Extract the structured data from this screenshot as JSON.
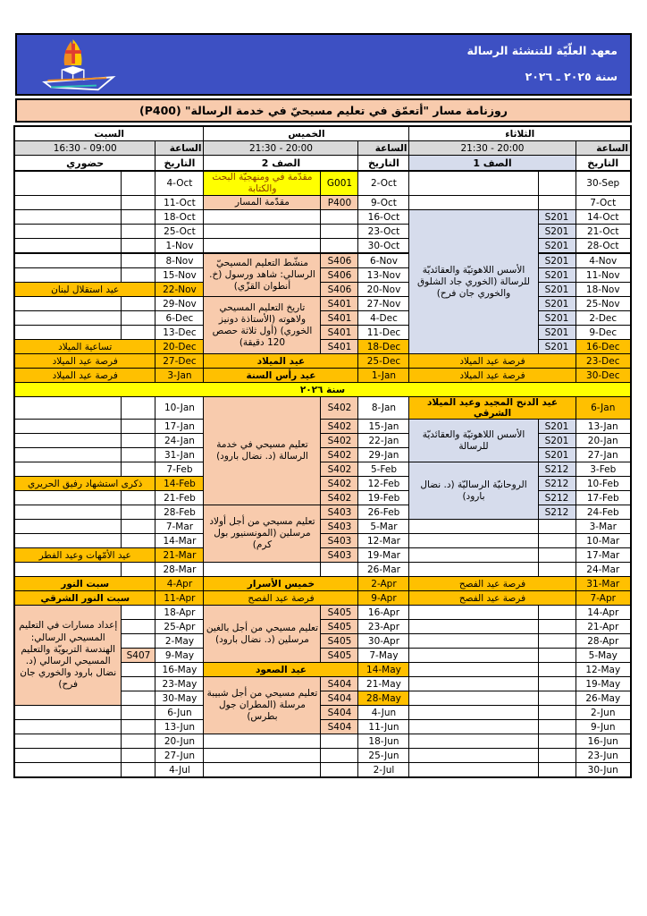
{
  "header": {
    "institute_name": "معهد العلّيّة للتنشئة الرسالة",
    "year_range": "سنة ٢٠٢٥ ـ ٢٠٢٦",
    "logo_icon": "boat-sail-cross-logo"
  },
  "title_bar": {
    "text": "روزنامة مسار \"أتعمّق في تعليم مسيحيّ في خدمة الرسالة\" (P400)"
  },
  "colors": {
    "header_blue": "#3d50c3",
    "band_salmon": "#f8cbad",
    "holiday_orange": "#ffc000",
    "course_blue": "#d6dcec",
    "year_yellow": "#ffff00",
    "time_gray": "#d9d9d9"
  },
  "table": {
    "time_label": "الساعة",
    "date_label": "التاريخ",
    "year_divider": "سنة ٢٠٢٦",
    "year_divider_after_row": 13,
    "groups": [
      {
        "key": "tue",
        "day": "الثلاثاء",
        "time": "21:30 - 20:00",
        "class_header": "الصف 1",
        "class_header_bg": "blue"
      },
      {
        "key": "thu",
        "day": "الخميس",
        "time": "21:30 - 20:00",
        "class_header": "الصف 2",
        "class_header_bg": ""
      },
      {
        "key": "sat",
        "day": "السبت",
        "time": "16:30 - 09:00",
        "class_header": "حضوري",
        "class_header_bg": ""
      }
    ],
    "rows": [
      {
        "tue": {
          "date": "30-Sep",
          "code": "",
          "desc": null
        },
        "thu": {
          "date": "2-Oct",
          "code": "G001",
          "cbg": "yellow",
          "desc": {
            "type": "block",
            "span": 1,
            "text": "مقدّمة في ومنهجيّة البحث والكتابة",
            "bg": "yellow",
            "fg": "brown",
            "align": "r"
          }
        },
        "sat": {
          "date": "4-Oct",
          "code": "",
          "desc": null
        }
      },
      {
        "tue": {
          "date": "7-Oct",
          "code": "",
          "desc": null
        },
        "thu": {
          "date": "9-Oct",
          "code": "P400",
          "cbg": "salmon",
          "desc": {
            "type": "block",
            "span": 1,
            "text": "مقدّمة المسار",
            "bg": "salmon",
            "align": "r"
          }
        },
        "sat": {
          "date": "11-Oct",
          "code": "",
          "desc": null
        }
      },
      {
        "tue": {
          "date": "14-Oct",
          "code": "S201",
          "cbg": "blue",
          "desc": {
            "type": "block",
            "span": 10,
            "text": "الأسس اللاهوتيّة والعقائديّة للرسالة (الخوري جاد الشلوق والخوري جان فرح)",
            "bg": "blue"
          }
        },
        "thu": {
          "date": "16-Oct",
          "code": "",
          "desc": null
        },
        "sat": {
          "date": "18-Oct",
          "code": "",
          "desc": null
        }
      },
      {
        "tue": {
          "date": "21-Oct",
          "code": "S201",
          "cbg": "blue",
          "desc": "skip"
        },
        "thu": {
          "date": "23-Oct",
          "code": "",
          "desc": null
        },
        "sat": {
          "date": "25-Oct",
          "code": "",
          "desc": null
        }
      },
      {
        "tue": {
          "date": "28-Oct",
          "code": "S201",
          "cbg": "blue",
          "desc": "skip"
        },
        "thu": {
          "date": "30-Oct",
          "code": "",
          "desc": null
        },
        "sat": {
          "date": "1-Nov",
          "code": "",
          "desc": null
        }
      },
      {
        "tue": {
          "date": "4-Nov",
          "code": "S201",
          "cbg": "blue",
          "desc": "skip"
        },
        "thu": {
          "date": "6-Nov",
          "code": "S406",
          "cbg": "salmon",
          "desc": {
            "type": "block",
            "span": 3,
            "text": "منشّط التعليم المسيحيّ الرسالي: شاهد ورسول (خ. أنطوان القزّي)",
            "bg": "salmon"
          }
        },
        "sat": {
          "date": "8-Nov",
          "code": "",
          "desc": null
        }
      },
      {
        "tue": {
          "date": "11-Nov",
          "code": "S201",
          "cbg": "blue",
          "desc": "skip"
        },
        "thu": {
          "date": "13-Nov",
          "code": "S406",
          "cbg": "salmon",
          "desc": "skip"
        },
        "sat": {
          "date": "15-Nov",
          "code": "",
          "desc": null
        }
      },
      {
        "tue": {
          "date": "18-Nov",
          "code": "S201",
          "cbg": "blue",
          "desc": "skip"
        },
        "thu": {
          "date": "20-Nov",
          "code": "S406",
          "cbg": "salmon",
          "desc": "skip"
        },
        "sat": {
          "date": "22-Nov",
          "hol": 1,
          "desc": {
            "type": "holiday",
            "text": "عيد استقلال لبنان",
            "align": "r"
          }
        }
      },
      {
        "tue": {
          "date": "25-Nov",
          "code": "S201",
          "cbg": "blue",
          "desc": "skip"
        },
        "thu": {
          "date": "27-Nov",
          "code": "S401",
          "cbg": "salmon",
          "desc": {
            "type": "block",
            "span": 4,
            "text": "تاريخ التعليم المسيحي ولاهوته (الأستاذة دونيز الخوري) (أول ثلاثة حصص 120 دقيقة)",
            "bg": "salmon"
          }
        },
        "sat": {
          "date": "29-Nov",
          "code": "",
          "desc": null
        }
      },
      {
        "tue": {
          "date": "2-Dec",
          "code": "S201",
          "cbg": "blue",
          "desc": "skip"
        },
        "thu": {
          "date": "4-Dec",
          "code": "S401",
          "cbg": "salmon",
          "desc": "skip"
        },
        "sat": {
          "date": "6-Dec",
          "code": "",
          "desc": null
        }
      },
      {
        "tue": {
          "date": "9-Dec",
          "code": "S201",
          "cbg": "blue",
          "desc": "skip"
        },
        "thu": {
          "date": "11-Dec",
          "code": "S401",
          "cbg": "salmon",
          "desc": "skip"
        },
        "sat": {
          "date": "13-Dec",
          "code": "",
          "desc": null
        }
      },
      {
        "tue": {
          "date": "16-Dec",
          "hol": 1,
          "code": "S201",
          "cbg": "blue",
          "desc": "skip"
        },
        "thu": {
          "date": "18-Dec",
          "hol": 1,
          "code": "S401",
          "cbg": "salmon",
          "desc": "skip"
        },
        "sat": {
          "date": "20-Dec",
          "hol": 1,
          "desc": {
            "type": "holiday",
            "text": "تساعية الميلاد",
            "align": "r"
          }
        }
      },
      {
        "tue": {
          "date": "23-Dec",
          "hol": 1,
          "desc": {
            "type": "holiday",
            "text": "فرصة عيد الميلاد"
          }
        },
        "thu": {
          "date": "25-Dec",
          "hol": 1,
          "desc": {
            "type": "holiday",
            "text": "عيد الميلاد",
            "bold": 1
          }
        },
        "sat": {
          "date": "27-Dec",
          "hol": 1,
          "desc": {
            "type": "holiday",
            "text": "فرصة عيد الميلاد",
            "align": "r"
          }
        }
      },
      {
        "tue": {
          "date": "30-Dec",
          "hol": 1,
          "desc": {
            "type": "holiday",
            "text": "فرصة عيد الميلاد"
          }
        },
        "thu": {
          "date": "1-Jan",
          "hol": 1,
          "desc": {
            "type": "holiday",
            "text": "عيد رأس السنة",
            "bold": 1
          }
        },
        "sat": {
          "date": "3-Jan",
          "hol": 1,
          "desc": {
            "type": "holiday",
            "text": "فرصة عيد الميلاد",
            "align": "r"
          }
        }
      },
      {
        "tue": {
          "date": "6-Jan",
          "hol": 1,
          "desc": {
            "type": "holiday",
            "text": "عيد الدنح المجيد وعيد الميلاد الشرقي",
            "bold": 1,
            "align": "r"
          }
        },
        "thu": {
          "date": "8-Jan",
          "code": "S402",
          "cbg": "salmon",
          "desc": {
            "type": "block",
            "span": 7,
            "text": "تعليم مسيحي في خدمة الرسالة (د. نضال بارود)",
            "bg": "salmon"
          }
        },
        "sat": {
          "date": "10-Jan",
          "code": "",
          "desc": null
        }
      },
      {
        "tue": {
          "date": "13-Jan",
          "code": "S201",
          "cbg": "blue",
          "desc": {
            "type": "block",
            "span": 3,
            "text": "الأسس اللاهوتيّة والعقائديّة للرسالة",
            "bg": "blue"
          }
        },
        "thu": {
          "date": "15-Jan",
          "code": "S402",
          "cbg": "salmon",
          "desc": "skip"
        },
        "sat": {
          "date": "17-Jan",
          "code": "",
          "desc": null
        }
      },
      {
        "tue": {
          "date": "20-Jan",
          "code": "S201",
          "cbg": "blue",
          "desc": "skip"
        },
        "thu": {
          "date": "22-Jan",
          "code": "S402",
          "cbg": "salmon",
          "desc": "skip"
        },
        "sat": {
          "date": "24-Jan",
          "code": "",
          "desc": null
        }
      },
      {
        "tue": {
          "date": "27-Jan",
          "code": "S201",
          "cbg": "blue",
          "desc": "skip"
        },
        "thu": {
          "date": "29-Jan",
          "code": "S402",
          "cbg": "salmon",
          "desc": "skip"
        },
        "sat": {
          "date": "31-Jan",
          "code": "",
          "desc": null
        }
      },
      {
        "tue": {
          "date": "3-Feb",
          "code": "S212",
          "cbg": "blue",
          "desc": {
            "type": "block",
            "span": 4,
            "text": "الروحانيّة الرساليّة (د. نضال بارود)",
            "bg": "blue"
          }
        },
        "thu": {
          "date": "5-Feb",
          "code": "S402",
          "cbg": "salmon",
          "desc": "skip"
        },
        "sat": {
          "date": "7-Feb",
          "code": "",
          "desc": null
        }
      },
      {
        "tue": {
          "date": "10-Feb",
          "code": "S212",
          "cbg": "blue",
          "desc": "skip"
        },
        "thu": {
          "date": "12-Feb",
          "code": "S402",
          "cbg": "salmon",
          "desc": "skip"
        },
        "sat": {
          "date": "14-Feb",
          "hol": 1,
          "desc": {
            "type": "holiday",
            "text": "ذكرى استشهاد رفيق الحريري",
            "align": "r"
          }
        }
      },
      {
        "tue": {
          "date": "17-Feb",
          "code": "S212",
          "cbg": "blue",
          "desc": "skip"
        },
        "thu": {
          "date": "19-Feb",
          "code": "S402",
          "cbg": "salmon",
          "desc": "skip"
        },
        "sat": {
          "date": "21-Feb",
          "code": "",
          "desc": null
        }
      },
      {
        "tue": {
          "date": "24-Feb",
          "code": "S212",
          "cbg": "blue",
          "desc": "skip"
        },
        "thu": {
          "date": "26-Feb",
          "code": "S403",
          "cbg": "salmon",
          "desc": {
            "type": "block",
            "span": 4,
            "text": "تعليم مسيحي من أجل أولاد مرسلين (المونسنيور بول كرم)",
            "bg": "salmon"
          }
        },
        "sat": {
          "date": "28-Feb",
          "code": "",
          "desc": null
        }
      },
      {
        "tue": {
          "date": "3-Mar",
          "code": "",
          "desc": null
        },
        "thu": {
          "date": "5-Mar",
          "code": "S403",
          "cbg": "salmon",
          "desc": "skip"
        },
        "sat": {
          "date": "7-Mar",
          "code": "",
          "desc": null
        }
      },
      {
        "tue": {
          "date": "10-Mar",
          "code": "",
          "desc": null
        },
        "thu": {
          "date": "12-Mar",
          "code": "S403",
          "cbg": "salmon",
          "desc": "skip"
        },
        "sat": {
          "date": "14-Mar",
          "code": "",
          "desc": null
        }
      },
      {
        "tue": {
          "date": "17-Mar",
          "code": "",
          "desc": null
        },
        "thu": {
          "date": "19-Mar",
          "code": "S403",
          "cbg": "salmon",
          "desc": "skip"
        },
        "sat": {
          "date": "21-Mar",
          "hol": 1,
          "desc": {
            "type": "holiday",
            "text": "عيد الأمّهات وعيد الفطر",
            "align": "r"
          }
        }
      },
      {
        "tue": {
          "date": "24-Mar",
          "code": "",
          "desc": null
        },
        "thu": {
          "date": "26-Mar",
          "code": "",
          "desc": null
        },
        "sat": {
          "date": "28-Mar",
          "code": "",
          "desc": null
        }
      },
      {
        "tue": {
          "date": "31-Mar",
          "hol": 1,
          "desc": {
            "type": "holiday",
            "text": "فرصة عيد الفصح"
          }
        },
        "thu": {
          "date": "2-Apr",
          "hol": 1,
          "desc": {
            "type": "holiday",
            "text": "خميس الأسرار",
            "bold": 1
          }
        },
        "sat": {
          "date": "4-Apr",
          "hol": 1,
          "desc": {
            "type": "holiday",
            "text": "سبت النور",
            "bold": 1,
            "align": "r"
          }
        }
      },
      {
        "tue": {
          "date": "7-Apr",
          "hol": 1,
          "desc": {
            "type": "holiday",
            "text": "فرصة عيد الفصح"
          }
        },
        "thu": {
          "date": "9-Apr",
          "hol": 1,
          "desc": {
            "type": "holiday",
            "text": "فرصة عيد الفصح"
          }
        },
        "sat": {
          "date": "11-Apr",
          "hol": 1,
          "desc": {
            "type": "holiday",
            "text": "سبت النور الشرقي",
            "bold": 1,
            "align": "r"
          }
        }
      },
      {
        "tue": {
          "date": "14-Apr",
          "code": "",
          "desc": null
        },
        "thu": {
          "date": "16-Apr",
          "code": "S405",
          "cbg": "salmon",
          "desc": {
            "type": "block",
            "span": 4,
            "text": "تعليم مسيحي من أجل بالغين مرسلين (د. نضال بارود)",
            "bg": "salmon"
          }
        },
        "sat": {
          "date": "18-Apr",
          "code": "",
          "desc": {
            "type": "block",
            "span": 7,
            "text": "إعداد مسارات في التعليم المسيحي الرسالي: الهندسة التربويّة والتعليم المسيحي الرسالي (د. نضال بارود والخوري جان فرح)",
            "bg": "salmon"
          }
        }
      },
      {
        "tue": {
          "date": "21-Apr",
          "code": "",
          "desc": null
        },
        "thu": {
          "date": "23-Apr",
          "code": "S405",
          "cbg": "salmon",
          "desc": "skip"
        },
        "sat": {
          "date": "25-Apr",
          "code": "",
          "desc": "skip"
        }
      },
      {
        "tue": {
          "date": "28-Apr",
          "code": "",
          "desc": null
        },
        "thu": {
          "date": "30-Apr",
          "code": "S405",
          "cbg": "salmon",
          "desc": "skip"
        },
        "sat": {
          "date": "2-May",
          "code": "",
          "desc": "skip"
        }
      },
      {
        "tue": {
          "date": "5-May",
          "code": "",
          "desc": null
        },
        "thu": {
          "date": "7-May",
          "code": "S405",
          "cbg": "salmon",
          "desc": "skip"
        },
        "sat": {
          "date": "9-May",
          "code": "S407",
          "cbg": "salmon",
          "desc": "skip"
        }
      },
      {
        "tue": {
          "date": "12-May",
          "code": "",
          "desc": null
        },
        "thu": {
          "date": "14-May",
          "hol": 1,
          "desc": {
            "type": "holiday",
            "text": "عيد الصعود",
            "bold": 1
          }
        },
        "sat": {
          "date": "16-May",
          "code": "",
          "desc": "skip"
        }
      },
      {
        "tue": {
          "date": "19-May",
          "code": "",
          "desc": null
        },
        "thu": {
          "date": "21-May",
          "code": "S404",
          "cbg": "salmon",
          "desc": {
            "type": "block",
            "span": 4,
            "text": "تعليم مسيحي من أجل شبيبة مرسلة (المطران جول بطرس)",
            "bg": "salmon"
          }
        },
        "sat": {
          "date": "23-May",
          "code": "",
          "desc": "skip"
        }
      },
      {
        "tue": {
          "date": "26-May",
          "code": "",
          "desc": null
        },
        "thu": {
          "date": "28-May",
          "hol": 1,
          "code": "S404",
          "cbg": "salmon",
          "desc": "skip"
        },
        "sat": {
          "date": "30-May",
          "code": "",
          "desc": "skip"
        }
      },
      {
        "tue": {
          "date": "2-Jun",
          "code": "",
          "desc": null
        },
        "thu": {
          "date": "4-Jun",
          "code": "S404",
          "cbg": "salmon",
          "desc": "skip"
        },
        "sat": {
          "date": "6-Jun",
          "code": "",
          "desc": null
        }
      },
      {
        "tue": {
          "date": "9-Jun",
          "code": "",
          "desc": null
        },
        "thu": {
          "date": "11-Jun",
          "code": "S404",
          "cbg": "salmon",
          "desc": "skip"
        },
        "sat": {
          "date": "13-Jun",
          "code": "",
          "desc": null
        }
      },
      {
        "tue": {
          "date": "16-Jun",
          "code": "",
          "desc": null
        },
        "thu": {
          "date": "18-Jun",
          "code": "",
          "desc": null
        },
        "sat": {
          "date": "20-Jun",
          "code": "",
          "desc": null
        }
      },
      {
        "tue": {
          "date": "23-Jun",
          "code": "",
          "desc": null
        },
        "thu": {
          "date": "25-Jun",
          "code": "",
          "desc": null
        },
        "sat": {
          "date": "27-Jun",
          "code": "",
          "desc": null
        }
      },
      {
        "tue": {
          "date": "30-Jun",
          "code": "",
          "desc": null
        },
        "thu": {
          "date": "2-Jul",
          "code": "",
          "desc": null
        },
        "sat": {
          "date": "4-Jul",
          "code": "",
          "desc": null
        }
      }
    ]
  }
}
